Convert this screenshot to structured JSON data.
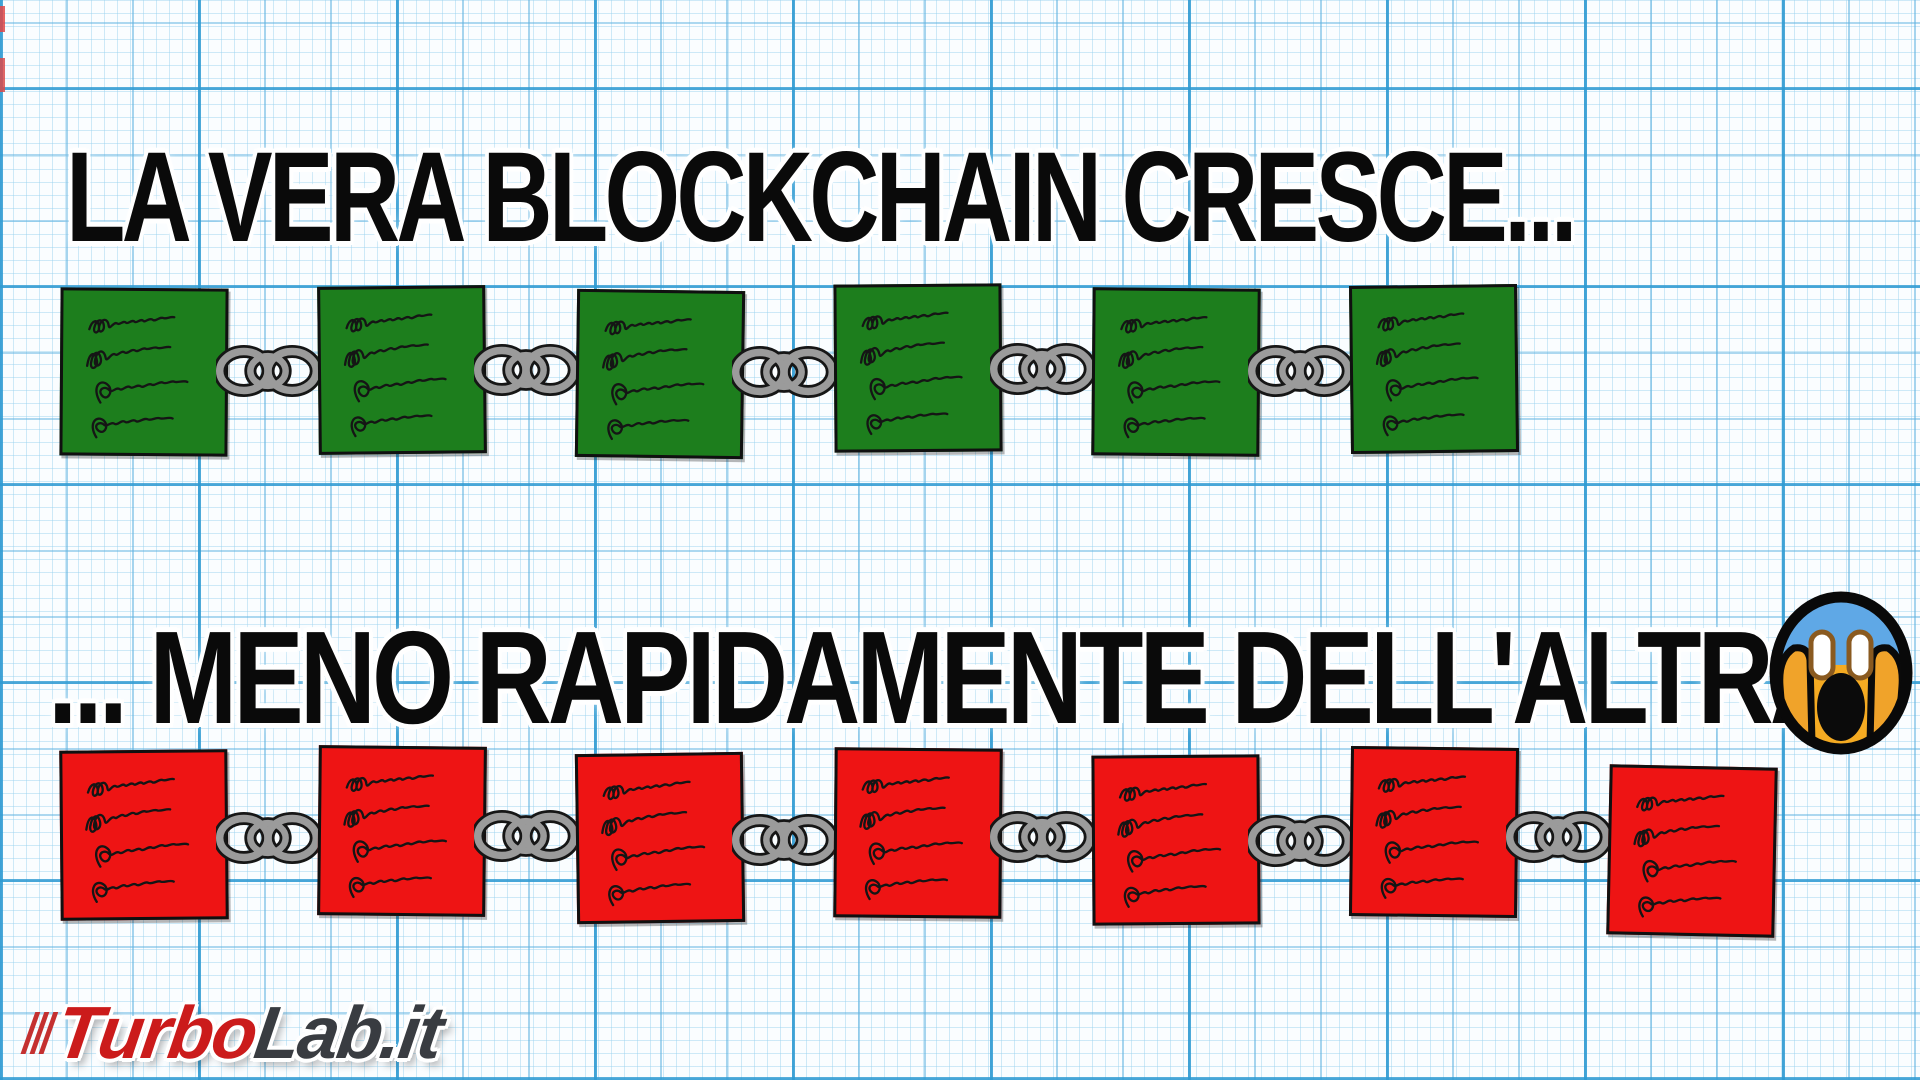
{
  "titles": {
    "top": "LA VERA BLOCKCHAIN CRESCE...",
    "bottom": "... MENO RAPIDAMENTE DELL'ALTRA"
  },
  "emoji": {
    "name": "face-screaming-in-fear",
    "character": "😱"
  },
  "watermark": {
    "turbo": "Turbo",
    "lab": "Lab.it",
    "full": "TurboLab.it"
  },
  "diagram": {
    "description": "Two hand-drawn blockchains of scribbled paper blocks joined by gray chain links on graph paper",
    "chains": [
      {
        "id": "green",
        "label": "la vera blockchain",
        "blocks": 6,
        "links": 5,
        "block_color": "#1d7e1d"
      },
      {
        "id": "red",
        "label": "l'altra blockchain",
        "blocks": 7,
        "links": 6,
        "block_color": "#ee1414"
      }
    ],
    "scribble_lines_per_block": 4
  },
  "colors": {
    "paper": "#fafdff",
    "grid_minor": "#bfe1f2",
    "grid_major": "#2e9ad2",
    "chain_gray": "#9b9b9b",
    "ink_outline": "#141414",
    "title_text": "#0a0a0a",
    "emoji_blue": "#5fa8e6",
    "emoji_yellow": "#f5ab22",
    "turbo_red": "#cb1b1b",
    "lab_gray": "#393c41"
  }
}
